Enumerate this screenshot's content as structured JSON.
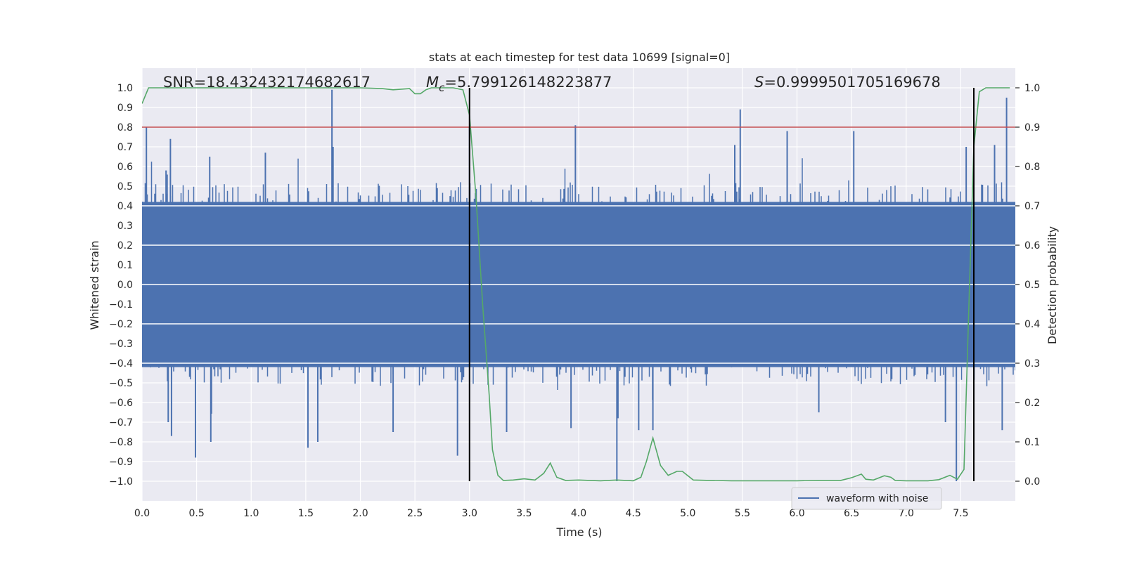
{
  "chart_data": {
    "type": "line",
    "title": "stats at each timestep for test data 10699 [signal=0]",
    "xlabel": "Time (s)",
    "ylabel": "Whitened strain",
    "ylabel_right": "Detection probability",
    "xlim": [
      0.0,
      8.0
    ],
    "ylim": [
      -1.1,
      1.1
    ],
    "ylim_right": [
      -0.05,
      1.05
    ],
    "x_ticks": [
      "0.0",
      "0.5",
      "1.0",
      "1.5",
      "2.0",
      "2.5",
      "3.0",
      "3.5",
      "4.0",
      "4.5",
      "5.0",
      "5.5",
      "6.0",
      "6.5",
      "7.0",
      "7.5"
    ],
    "x_tick_values": [
      0.0,
      0.5,
      1.0,
      1.5,
      2.0,
      2.5,
      3.0,
      3.5,
      4.0,
      4.5,
      5.0,
      5.5,
      6.0,
      6.5,
      7.0,
      7.5
    ],
    "y_ticks": [
      "1.0",
      "0.9",
      "0.8",
      "0.7",
      "0.6",
      "0.5",
      "0.4",
      "0.3",
      "0.2",
      "0.1",
      "0.0",
      "−0.1",
      "−0.2",
      "−0.3",
      "−0.4",
      "−0.5",
      "−0.6",
      "−0.7",
      "−0.8",
      "−0.9",
      "−1.0"
    ],
    "y_tick_values": [
      1.0,
      0.9,
      0.8,
      0.7,
      0.6,
      0.5,
      0.4,
      0.3,
      0.2,
      0.1,
      0.0,
      -0.1,
      -0.2,
      -0.3,
      -0.4,
      -0.5,
      -0.6,
      -0.7,
      -0.8,
      -0.9,
      -1.0
    ],
    "y_ticks_right": [
      "1.0",
      "0.9",
      "0.8",
      "0.7",
      "0.6",
      "0.5",
      "0.4",
      "0.3",
      "0.2",
      "0.1",
      "0.0"
    ],
    "y_tick_values_right": [
      1.0,
      0.9,
      0.8,
      0.7,
      0.6,
      0.5,
      0.4,
      0.3,
      0.2,
      0.1,
      0.0
    ],
    "annotations": {
      "snr": "SNR=18.432432174682617",
      "mc_symbol": "M",
      "mc_sub": "c",
      "mc_value": "=5.799126148223877",
      "s_symbol": "S",
      "s_value": "=0.9999501705169678"
    },
    "legend": {
      "label": "waveform with noise",
      "position": "lower-right"
    },
    "colors": {
      "waveform": "#4c72b0",
      "probability": "#55a868",
      "threshold": "#c44e52",
      "vline": "#000000",
      "background": "#eaeaf2",
      "grid": "#ffffff"
    },
    "threshold": {
      "axis": "right",
      "value": 0.9
    },
    "vertical_lines": [
      3.0,
      7.62
    ],
    "series": [
      {
        "name": "waveform with noise",
        "axis": "left",
        "style": "noise-band",
        "envelope_upper": 0.42,
        "envelope_lower": -0.42,
        "spikes": [
          {
            "x": 0.04,
            "y": 0.8
          },
          {
            "x": 0.22,
            "y": 0.58
          },
          {
            "x": 0.24,
            "y": -0.7
          },
          {
            "x": 0.26,
            "y": 0.74
          },
          {
            "x": 0.27,
            "y": -0.77
          },
          {
            "x": 0.49,
            "y": -0.88
          },
          {
            "x": 0.62,
            "y": 0.65
          },
          {
            "x": 0.63,
            "y": -0.8
          },
          {
            "x": 1.13,
            "y": 0.67
          },
          {
            "x": 1.52,
            "y": -0.83
          },
          {
            "x": 1.61,
            "y": -0.8
          },
          {
            "x": 1.74,
            "y": 0.99
          },
          {
            "x": 1.75,
            "y": 0.7
          },
          {
            "x": 2.3,
            "y": -0.75
          },
          {
            "x": 2.89,
            "y": -0.87
          },
          {
            "x": 3.0,
            "y": 0.8
          },
          {
            "x": 3.34,
            "y": -0.75
          },
          {
            "x": 3.93,
            "y": -0.73
          },
          {
            "x": 3.97,
            "y": 0.81
          },
          {
            "x": 4.35,
            "y": -1.0
          },
          {
            "x": 4.36,
            "y": -0.68
          },
          {
            "x": 4.55,
            "y": -0.74
          },
          {
            "x": 4.68,
            "y": -0.74
          },
          {
            "x": 5.43,
            "y": 0.71
          },
          {
            "x": 5.48,
            "y": 0.89
          },
          {
            "x": 5.91,
            "y": 0.78
          },
          {
            "x": 6.2,
            "y": -0.65
          },
          {
            "x": 6.52,
            "y": 0.78
          },
          {
            "x": 7.36,
            "y": -0.7
          },
          {
            "x": 7.46,
            "y": -1.0
          },
          {
            "x": 7.55,
            "y": 0.7
          },
          {
            "x": 7.88,
            "y": -0.74
          },
          {
            "x": 7.92,
            "y": 0.95
          },
          {
            "x": 7.81,
            "y": 0.71
          }
        ]
      },
      {
        "name": "Detection probability",
        "axis": "right",
        "style": "line",
        "x": [
          0.0,
          0.06,
          0.3,
          0.6,
          1.0,
          1.5,
          2.0,
          2.2,
          2.3,
          2.45,
          2.5,
          2.55,
          2.6,
          2.65,
          2.75,
          2.85,
          2.94,
          3.0,
          3.06,
          3.12,
          3.18,
          3.21,
          3.26,
          3.31,
          3.4,
          3.5,
          3.6,
          3.68,
          3.74,
          3.8,
          3.88,
          4.0,
          4.1,
          4.2,
          4.35,
          4.5,
          4.57,
          4.62,
          4.68,
          4.75,
          4.82,
          4.9,
          4.95,
          5.05,
          5.2,
          5.4,
          5.6,
          5.8,
          6.0,
          6.2,
          6.4,
          6.5,
          6.59,
          6.63,
          6.7,
          6.8,
          6.86,
          6.9,
          7.0,
          7.1,
          7.2,
          7.3,
          7.4,
          7.47,
          7.53,
          7.57,
          7.62,
          7.67,
          7.73,
          7.79,
          7.85,
          7.95
        ],
        "y": [
          0.96,
          1.0,
          1.0,
          1.0,
          1.0,
          1.0,
          1.0,
          0.998,
          0.995,
          0.998,
          0.985,
          0.985,
          0.995,
          1.0,
          1.0,
          1.0,
          0.995,
          0.93,
          0.72,
          0.45,
          0.22,
          0.08,
          0.015,
          0.002,
          0.003,
          0.006,
          0.003,
          0.02,
          0.046,
          0.01,
          0.002,
          0.003,
          0.002,
          0.001,
          0.003,
          0.001,
          0.01,
          0.05,
          0.11,
          0.04,
          0.015,
          0.025,
          0.025,
          0.003,
          0.002,
          0.001,
          0.001,
          0.001,
          0.001,
          0.002,
          0.002,
          0.009,
          0.018,
          0.005,
          0.003,
          0.014,
          0.01,
          0.002,
          0.001,
          0.001,
          0.001,
          0.004,
          0.015,
          0.005,
          0.03,
          0.4,
          0.85,
          0.99,
          1.0,
          1.0,
          1.0,
          1.0
        ]
      }
    ]
  }
}
